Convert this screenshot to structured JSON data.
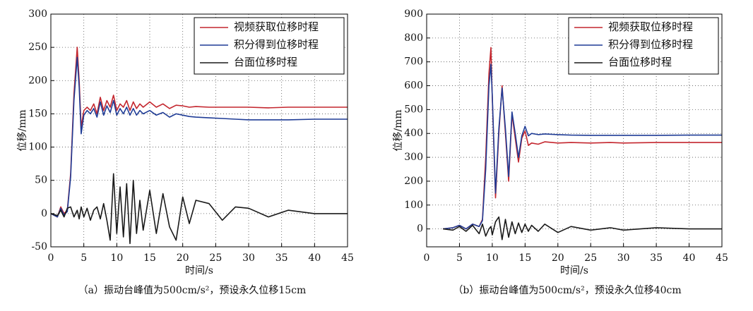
{
  "chart_data": [
    {
      "type": "line",
      "xlabel": "时间/s",
      "ylabel": "位移/mm",
      "caption": "（a）振动台峰值为500cm/s²，预设永久位移15cm",
      "x": [
        0,
        1,
        1.5,
        2,
        2.5,
        3,
        3.5,
        4,
        4.3,
        4.6,
        5,
        5.5,
        6,
        6.5,
        7,
        7.5,
        8,
        8.5,
        9,
        9.5,
        10,
        10.5,
        11,
        11.5,
        12,
        12.5,
        13,
        13.5,
        14,
        15,
        16,
        17,
        18,
        19,
        20,
        21,
        22,
        24,
        26,
        28,
        30,
        33,
        36,
        40,
        45
      ],
      "series": [
        {
          "name": "视频获取位移时程",
          "color": "#c4262e",
          "values": [
            0,
            -5,
            10,
            0,
            5,
            60,
            180,
            250,
            200,
            130,
            155,
            160,
            155,
            165,
            150,
            175,
            155,
            170,
            160,
            178,
            155,
            165,
            160,
            170,
            155,
            168,
            158,
            165,
            160,
            168,
            160,
            165,
            158,
            163,
            162,
            160,
            161,
            160,
            160,
            160,
            160,
            159,
            160,
            160,
            160
          ]
        },
        {
          "name": "积分得到位移时程",
          "color": "#1f3c96",
          "values": [
            0,
            -5,
            8,
            -2,
            3,
            55,
            170,
            235,
            190,
            120,
            148,
            155,
            150,
            158,
            145,
            168,
            148,
            162,
            152,
            170,
            148,
            158,
            150,
            160,
            148,
            158,
            148,
            155,
            150,
            155,
            148,
            152,
            145,
            150,
            148,
            146,
            145,
            144,
            143,
            142,
            141,
            141,
            141,
            142,
            142
          ]
        },
        {
          "name": "台面位移时程",
          "color": "#1a1a1a",
          "values": [
            0,
            -3,
            5,
            -5,
            8,
            10,
            -5,
            5,
            -8,
            10,
            -5,
            8,
            -10,
            5,
            10,
            -8,
            15,
            -10,
            -40,
            60,
            -30,
            40,
            -35,
            45,
            -45,
            50,
            -30,
            20,
            -25,
            35,
            -30,
            30,
            -20,
            -40,
            25,
            -15,
            20,
            15,
            -10,
            10,
            8,
            -5,
            5,
            0,
            0
          ]
        }
      ],
      "xlim": [
        0,
        45
      ],
      "xticks": [
        0,
        5,
        10,
        15,
        20,
        25,
        30,
        35,
        40,
        45
      ],
      "ylim": [
        -50,
        300
      ],
      "yticks": [
        -50,
        0,
        50,
        100,
        150,
        200,
        250,
        300
      ],
      "grid": true,
      "legend": "upper right"
    },
    {
      "type": "line",
      "xlabel": "时间/s",
      "ylabel": "位移/mm",
      "caption": "（b）振动台峰值为500cm/s²，预设永久位移40cm",
      "x": [
        2.5,
        4,
        5,
        6,
        7,
        8,
        8.5,
        9,
        9.5,
        9.8,
        10,
        10.5,
        11,
        11.5,
        12,
        12.5,
        13,
        13.5,
        14,
        14.5,
        15,
        15.5,
        16,
        17,
        18,
        20,
        22,
        25,
        28,
        30,
        35,
        40,
        45
      ],
      "series": [
        {
          "name": "视频获取位移时程",
          "color": "#c4262e",
          "values": [
            0,
            5,
            15,
            0,
            20,
            10,
            40,
            300,
            650,
            760,
            550,
            130,
            400,
            600,
            400,
            200,
            480,
            380,
            280,
            380,
            410,
            350,
            360,
            355,
            365,
            360,
            362,
            360,
            362,
            360,
            362,
            362,
            362
          ]
        },
        {
          "name": "积分得到位移时程",
          "color": "#1f3c96",
          "values": [
            0,
            5,
            15,
            0,
            20,
            10,
            35,
            250,
            600,
            690,
            560,
            150,
            420,
            590,
            420,
            220,
            490,
            400,
            300,
            390,
            430,
            390,
            400,
            395,
            398,
            395,
            393,
            392,
            392,
            392,
            392,
            393,
            393
          ]
        },
        {
          "name": "台面位移时程",
          "color": "#1a1a1a",
          "values": [
            0,
            -5,
            10,
            -10,
            15,
            -20,
            20,
            -30,
            0,
            10,
            -25,
            30,
            50,
            -45,
            40,
            -35,
            30,
            -20,
            25,
            -15,
            20,
            -10,
            15,
            -10,
            20,
            -15,
            10,
            -5,
            5,
            -5,
            5,
            0,
            0
          ]
        }
      ],
      "xlim": [
        0,
        45
      ],
      "xticks": [
        0,
        5,
        10,
        15,
        20,
        25,
        30,
        35,
        40,
        45
      ],
      "ylim": [
        -75,
        900
      ],
      "yticks": [
        0,
        100,
        200,
        300,
        400,
        500,
        600,
        700,
        800,
        900
      ],
      "grid": true,
      "legend": "upper right"
    }
  ]
}
